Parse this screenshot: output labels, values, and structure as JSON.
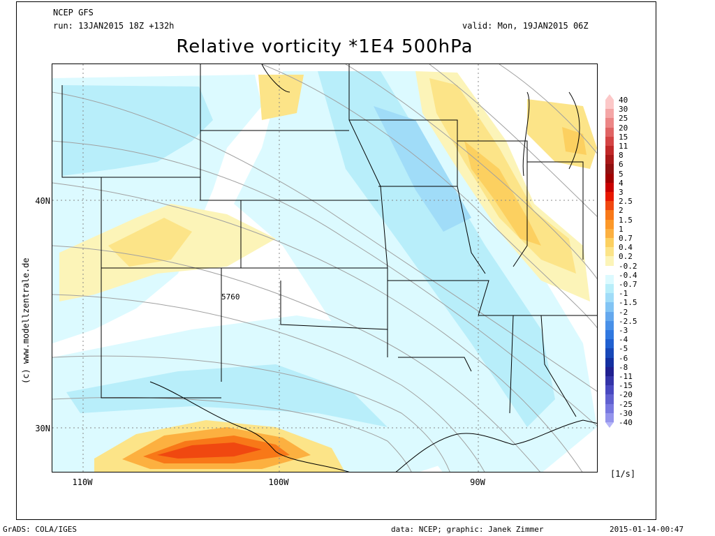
{
  "header": {
    "model": "NCEP GFS",
    "run": "run: 13JAN2015 18Z +132h",
    "valid": "valid: Mon, 19JAN2015 06Z",
    "title": "Relative vorticity *1E4 500hPa"
  },
  "map": {
    "lat_labels": [
      "40N",
      "30N"
    ],
    "lon_labels": [
      "110W",
      "100W",
      "90W"
    ],
    "contour_label": "5760"
  },
  "colorbar": {
    "unit": "[1/s]",
    "levels": [
      "40",
      "30",
      "25",
      "20",
      "15",
      "11",
      "8",
      "6",
      "5",
      "4",
      "3",
      "2.5",
      "2",
      "1.5",
      "1",
      "0.7",
      "0.4",
      "0.2",
      "-0.2",
      "-0.4",
      "-0.7",
      "-1",
      "-1.5",
      "-2",
      "-2.5",
      "-3",
      "-4",
      "-5",
      "-6",
      "-8",
      "-11",
      "-15",
      "-20",
      "-25",
      "-30",
      "-40"
    ],
    "colors": [
      "#fcc8c8",
      "#f4a6a6",
      "#ec8686",
      "#e06464",
      "#d44444",
      "#c02828",
      "#a81818",
      "#901010",
      "#a00000",
      "#c80000",
      "#e81800",
      "#f04810",
      "#f87818",
      "#fc9828",
      "#fcb040",
      "#fcd060",
      "#fce488",
      "#fcf4b8",
      "#ffffff",
      "#dcfaff",
      "#b8eefa",
      "#a0dcf8",
      "#82c4f4",
      "#64a8ee",
      "#4890e8",
      "#3078e0",
      "#2060d0",
      "#1848b8",
      "#1430a0",
      "#202090",
      "#3434a8",
      "#4848c0",
      "#6060d0",
      "#7878e0",
      "#9494ec",
      "#b4b4f8"
    ]
  },
  "footer": {
    "software": "GrADS: COLA/IGES",
    "source": "data: NCEP; graphic: Janek Zimmer",
    "timestamp": "2015-01-14-00:47",
    "credit": "(c) www.modellzentrale.de"
  }
}
